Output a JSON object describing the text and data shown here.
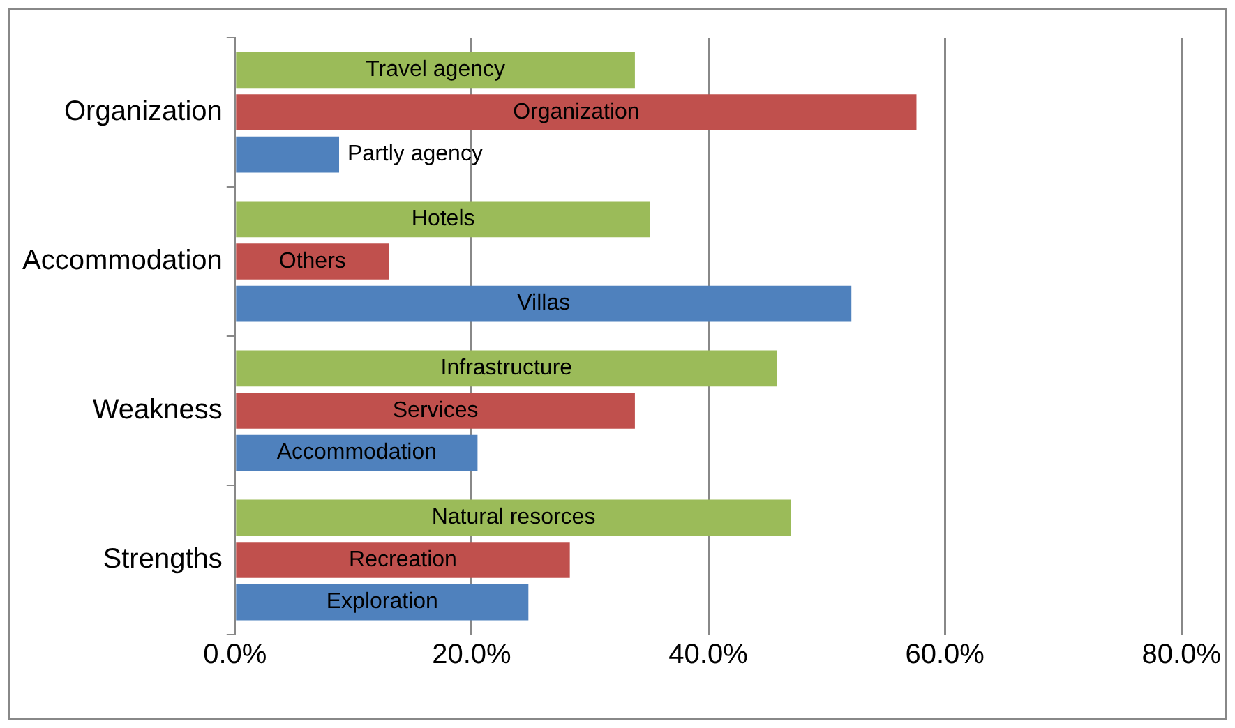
{
  "chart_data": {
    "type": "bar",
    "orientation": "horizontal",
    "categories": [
      "Organization",
      "Accommodation",
      "Weakness",
      "Strengths"
    ],
    "series": [
      {
        "color": "#9bbb59",
        "values": [
          33.8,
          35.1,
          45.8,
          47.0
        ],
        "value_labels": [
          "Travel agency",
          "Hotels",
          "Infrastructure",
          "Natural resorces"
        ]
      },
      {
        "color": "#c0504d",
        "values": [
          57.6,
          13.0,
          33.8,
          28.3
        ],
        "value_labels": [
          "Organization",
          "Others",
          "Services",
          "Recreation"
        ]
      },
      {
        "color": "#4f81bd",
        "values": [
          8.8,
          52.1,
          20.5,
          24.8
        ],
        "value_labels": [
          "Partly agency",
          "Villas",
          "Accommodation",
          "Exploration"
        ]
      }
    ],
    "xlim": [
      0,
      80
    ],
    "xticks": [
      {
        "value": 0,
        "label": "0.0%"
      },
      {
        "value": 20,
        "label": "20.0%"
      },
      {
        "value": 40,
        "label": "40.0%"
      },
      {
        "value": 60,
        "label": "60.0%"
      },
      {
        "value": 80,
        "label": "80.0%"
      }
    ],
    "grid": "x",
    "legend": false
  }
}
